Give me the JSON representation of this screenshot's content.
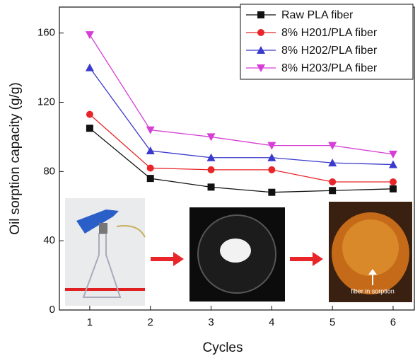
{
  "chart_data": {
    "type": "line",
    "x_label": "Cycles",
    "y_label": "Oil sorption capacity (g/g)",
    "x": [
      1,
      2,
      3,
      4,
      5,
      6
    ],
    "xlim": [
      0.5,
      6.35
    ],
    "xticks": [
      1,
      2,
      3,
      4,
      5,
      6
    ],
    "ylim": [
      0,
      175
    ],
    "yticks": [
      0,
      40,
      80,
      120,
      160
    ],
    "legend": "upper right",
    "annotations": [
      "fiber in sorption"
    ],
    "series": [
      {
        "name": "Raw PLA fiber",
        "color": "#111111",
        "marker": "square",
        "values": [
          105,
          76,
          71,
          68,
          69,
          70
        ]
      },
      {
        "name": "8% H201/PLA fiber",
        "color": "#e8262a",
        "marker": "circle",
        "values": [
          113,
          82,
          81,
          81,
          74,
          74
        ]
      },
      {
        "name": "8% H202/PLA fiber",
        "color": "#3a3acc",
        "marker": "triangle-up",
        "values": [
          140,
          92,
          88,
          88,
          85,
          84
        ]
      },
      {
        "name": "8% H203/PLA fiber",
        "color": "#d63fd6",
        "marker": "triangle-down",
        "values": [
          159,
          104,
          100,
          95,
          95,
          90
        ]
      }
    ]
  }
}
